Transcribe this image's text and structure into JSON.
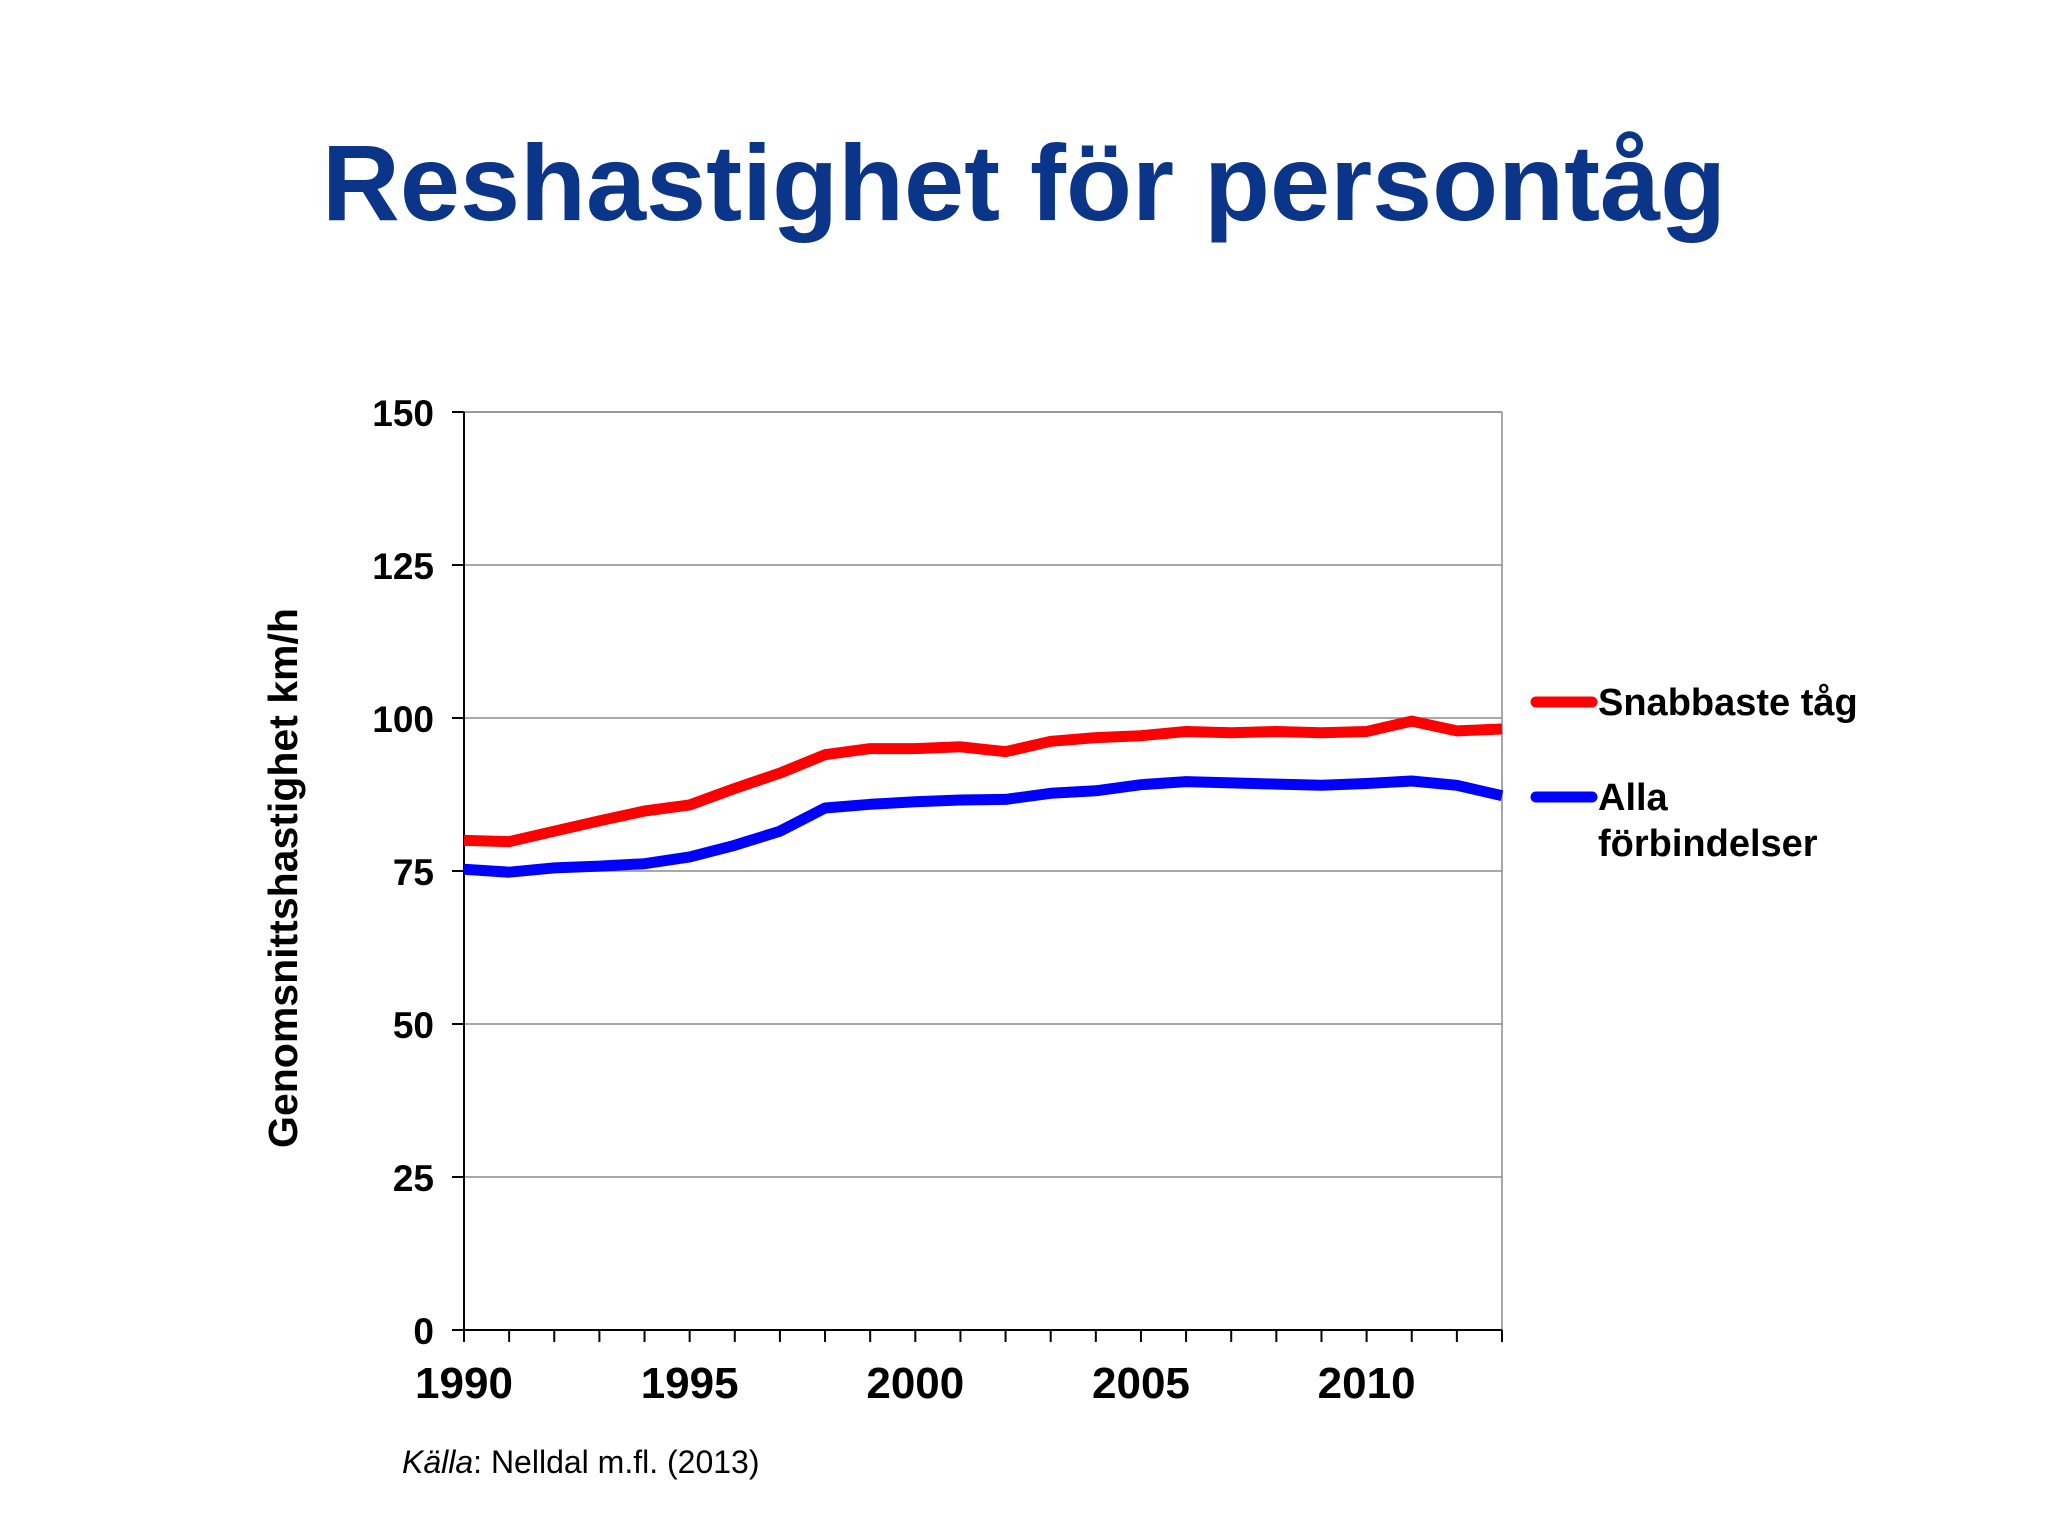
{
  "slide": {
    "title": "Reshastighet för persontåg",
    "source_label": "Källa",
    "source_text": ": Nelldal m.fl. (2013)"
  },
  "chart_data": {
    "type": "line",
    "title": "",
    "xlabel": "",
    "ylabel": "Genomsnittshastighet km/h",
    "xlim": [
      1990,
      2013
    ],
    "ylim": [
      0,
      150
    ],
    "x_ticks": [
      1990,
      1995,
      2000,
      2005,
      2010
    ],
    "y_ticks": [
      0,
      25,
      50,
      75,
      100,
      125,
      150
    ],
    "grid": true,
    "legend": "right",
    "x": [
      1990,
      1991,
      1992,
      1993,
      1994,
      1995,
      1996,
      1997,
      1998,
      1999,
      2000,
      2001,
      2002,
      2003,
      2004,
      2005,
      2006,
      2007,
      2008,
      2009,
      2010,
      2011,
      2012,
      2013
    ],
    "series": [
      {
        "name": "Snabbaste tåg",
        "color": "#ff0000",
        "values": [
          80,
          79.8,
          81.5,
          83.2,
          84.8,
          85.8,
          88.5,
          91,
          94,
          95,
          95,
          95.3,
          94.5,
          96.2,
          96.8,
          97.1,
          97.8,
          97.6,
          97.8,
          97.6,
          97.8,
          99.5,
          97.9,
          98.2
        ]
      },
      {
        "name": "Alla förbindelser",
        "name_lines": [
          "Alla",
          "förbindelser"
        ],
        "color": "#0000ff",
        "values": [
          75.3,
          74.8,
          75.5,
          75.8,
          76.2,
          77.3,
          79.2,
          81.5,
          85.3,
          85.9,
          86.3,
          86.6,
          86.7,
          87.7,
          88.1,
          89.1,
          89.6,
          89.4,
          89.2,
          89,
          89.3,
          89.7,
          89,
          87.3
        ]
      }
    ]
  }
}
